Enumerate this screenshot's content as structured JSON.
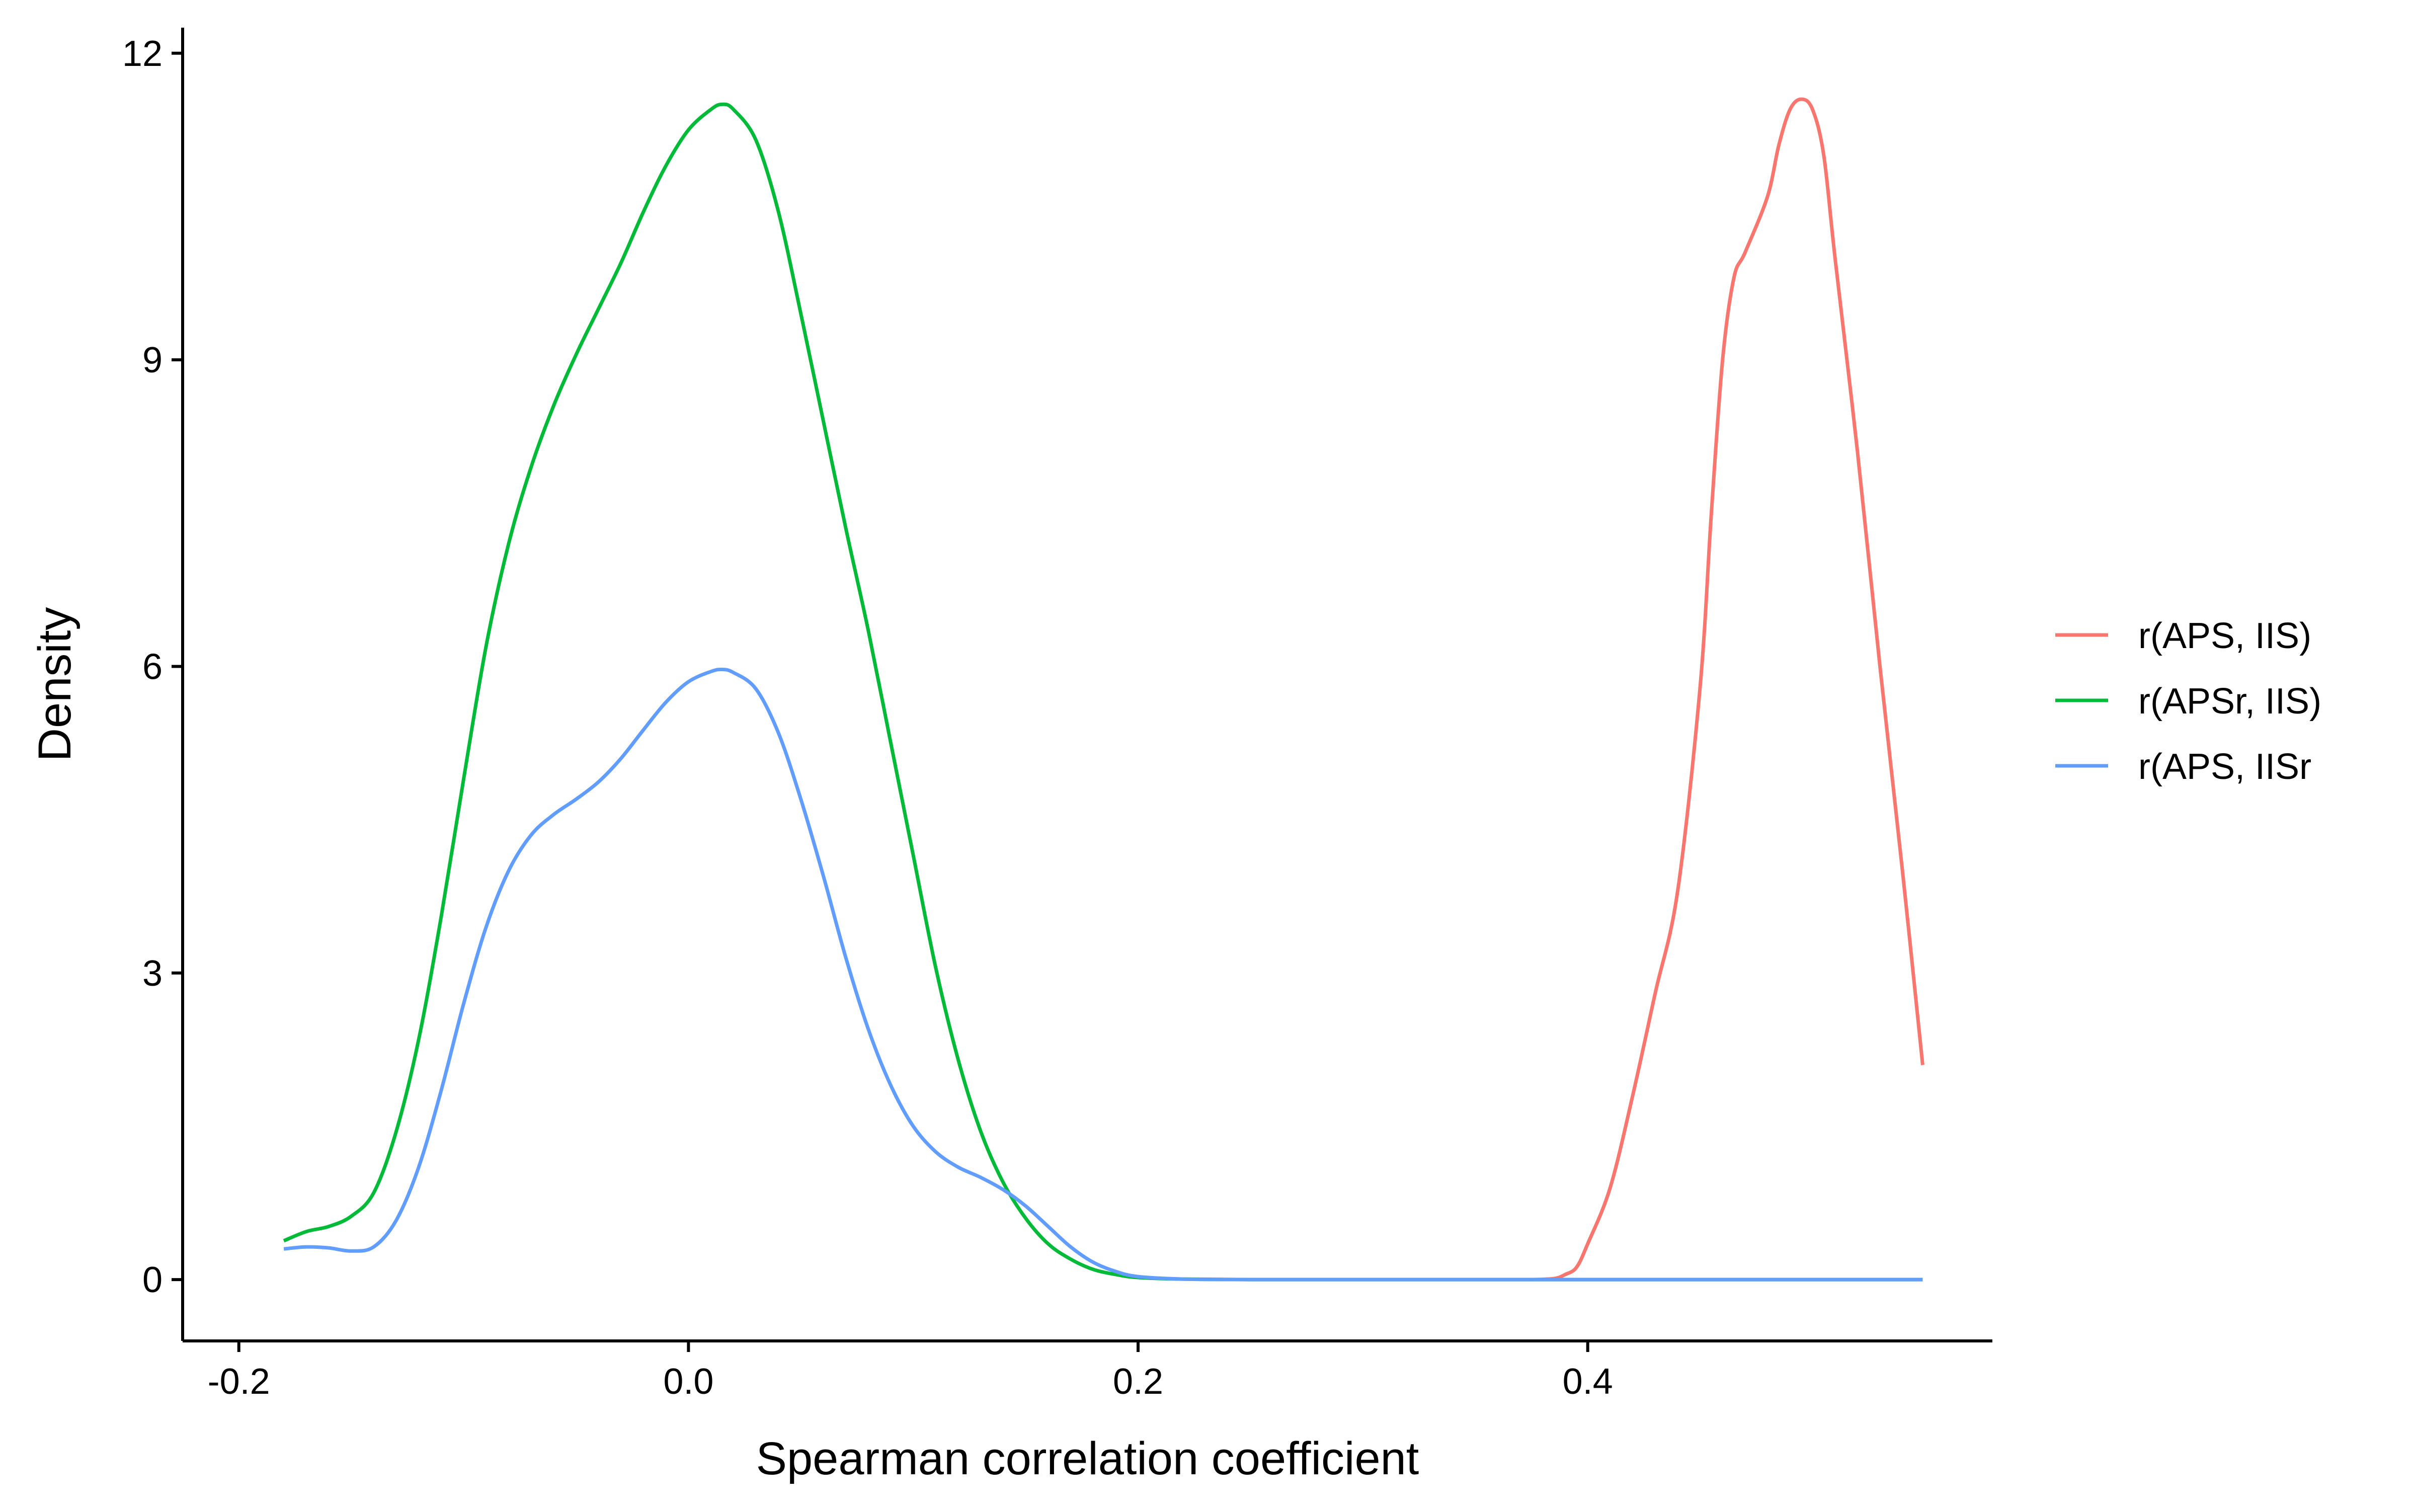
{
  "chart_data": {
    "type": "line",
    "title": "",
    "xlabel": "Spearman correlation coefficient",
    "ylabel": "Density",
    "xlim": [
      -0.225,
      0.58
    ],
    "ylim": [
      -0.6,
      12.25
    ],
    "xticks": [
      -0.2,
      0.0,
      0.2,
      0.4
    ],
    "xtick_labels": [
      "-0.2",
      "0.0",
      "0.2",
      "0.4"
    ],
    "yticks": [
      0,
      3,
      6,
      9,
      12
    ],
    "ytick_labels": [
      "0",
      "3",
      "6",
      "9",
      "12"
    ],
    "grid": false,
    "legend_position": "right",
    "series": [
      {
        "name": "r(APS, IIS)",
        "color": "#F8766D",
        "points": [
          [
            0.375,
            0.0
          ],
          [
            0.385,
            0.01
          ],
          [
            0.39,
            0.05
          ],
          [
            0.395,
            0.12
          ],
          [
            0.4,
            0.35
          ],
          [
            0.41,
            0.9
          ],
          [
            0.42,
            1.8
          ],
          [
            0.43,
            2.8
          ],
          [
            0.44,
            3.8
          ],
          [
            0.45,
            5.8
          ],
          [
            0.455,
            7.5
          ],
          [
            0.46,
            9.0
          ],
          [
            0.465,
            9.8
          ],
          [
            0.47,
            10.05
          ],
          [
            0.48,
            10.6
          ],
          [
            0.485,
            11.1
          ],
          [
            0.49,
            11.45
          ],
          [
            0.495,
            11.55
          ],
          [
            0.5,
            11.45
          ],
          [
            0.505,
            11.0
          ],
          [
            0.51,
            10.0
          ],
          [
            0.52,
            8.1
          ],
          [
            0.53,
            6.0
          ],
          [
            0.54,
            4.0
          ],
          [
            0.549,
            2.1
          ]
        ]
      },
      {
        "name": "r(APSr, IIS)",
        "color": "#00BA38",
        "points": [
          [
            -0.18,
            0.38
          ],
          [
            -0.17,
            0.47
          ],
          [
            -0.16,
            0.52
          ],
          [
            -0.15,
            0.62
          ],
          [
            -0.14,
            0.85
          ],
          [
            -0.13,
            1.45
          ],
          [
            -0.12,
            2.35
          ],
          [
            -0.11,
            3.55
          ],
          [
            -0.1,
            4.9
          ],
          [
            -0.09,
            6.2
          ],
          [
            -0.08,
            7.2
          ],
          [
            -0.07,
            7.95
          ],
          [
            -0.06,
            8.55
          ],
          [
            -0.05,
            9.05
          ],
          [
            -0.04,
            9.5
          ],
          [
            -0.03,
            9.95
          ],
          [
            -0.02,
            10.45
          ],
          [
            -0.01,
            10.9
          ],
          [
            0.0,
            11.25
          ],
          [
            0.01,
            11.45
          ],
          [
            0.015,
            11.5
          ],
          [
            0.02,
            11.45
          ],
          [
            0.03,
            11.15
          ],
          [
            0.04,
            10.45
          ],
          [
            0.05,
            9.45
          ],
          [
            0.06,
            8.4
          ],
          [
            0.07,
            7.35
          ],
          [
            0.08,
            6.35
          ],
          [
            0.09,
            5.25
          ],
          [
            0.1,
            4.15
          ],
          [
            0.11,
            3.05
          ],
          [
            0.12,
            2.15
          ],
          [
            0.13,
            1.45
          ],
          [
            0.14,
            0.95
          ],
          [
            0.15,
            0.6
          ],
          [
            0.16,
            0.35
          ],
          [
            0.17,
            0.2
          ],
          [
            0.18,
            0.1
          ],
          [
            0.19,
            0.05
          ],
          [
            0.2,
            0.02
          ],
          [
            0.22,
            0.005
          ],
          [
            0.25,
            0.0
          ],
          [
            0.3,
            0.0
          ],
          [
            0.4,
            0.0
          ],
          [
            0.5,
            0.0
          ],
          [
            0.549,
            0.0
          ]
        ]
      },
      {
        "name": "r(APS, IISr",
        "color": "#619CFF",
        "points": [
          [
            -0.18,
            0.3
          ],
          [
            -0.17,
            0.32
          ],
          [
            -0.16,
            0.31
          ],
          [
            -0.15,
            0.28
          ],
          [
            -0.14,
            0.32
          ],
          [
            -0.13,
            0.58
          ],
          [
            -0.12,
            1.1
          ],
          [
            -0.11,
            1.85
          ],
          [
            -0.1,
            2.7
          ],
          [
            -0.09,
            3.45
          ],
          [
            -0.08,
            4.0
          ],
          [
            -0.07,
            4.35
          ],
          [
            -0.06,
            4.55
          ],
          [
            -0.05,
            4.7
          ],
          [
            -0.04,
            4.87
          ],
          [
            -0.03,
            5.1
          ],
          [
            -0.02,
            5.38
          ],
          [
            -0.01,
            5.65
          ],
          [
            0.0,
            5.85
          ],
          [
            0.01,
            5.95
          ],
          [
            0.015,
            5.97
          ],
          [
            0.02,
            5.94
          ],
          [
            0.03,
            5.78
          ],
          [
            0.04,
            5.35
          ],
          [
            0.05,
            4.7
          ],
          [
            0.06,
            3.95
          ],
          [
            0.07,
            3.15
          ],
          [
            0.08,
            2.45
          ],
          [
            0.09,
            1.9
          ],
          [
            0.1,
            1.5
          ],
          [
            0.11,
            1.25
          ],
          [
            0.12,
            1.1
          ],
          [
            0.13,
            1.0
          ],
          [
            0.14,
            0.88
          ],
          [
            0.15,
            0.72
          ],
          [
            0.16,
            0.52
          ],
          [
            0.17,
            0.32
          ],
          [
            0.18,
            0.17
          ],
          [
            0.19,
            0.08
          ],
          [
            0.2,
            0.03
          ],
          [
            0.22,
            0.005
          ],
          [
            0.25,
            0.0
          ],
          [
            0.3,
            0.0
          ],
          [
            0.4,
            0.0
          ],
          [
            0.5,
            0.0
          ],
          [
            0.549,
            0.0
          ]
        ]
      }
    ]
  }
}
